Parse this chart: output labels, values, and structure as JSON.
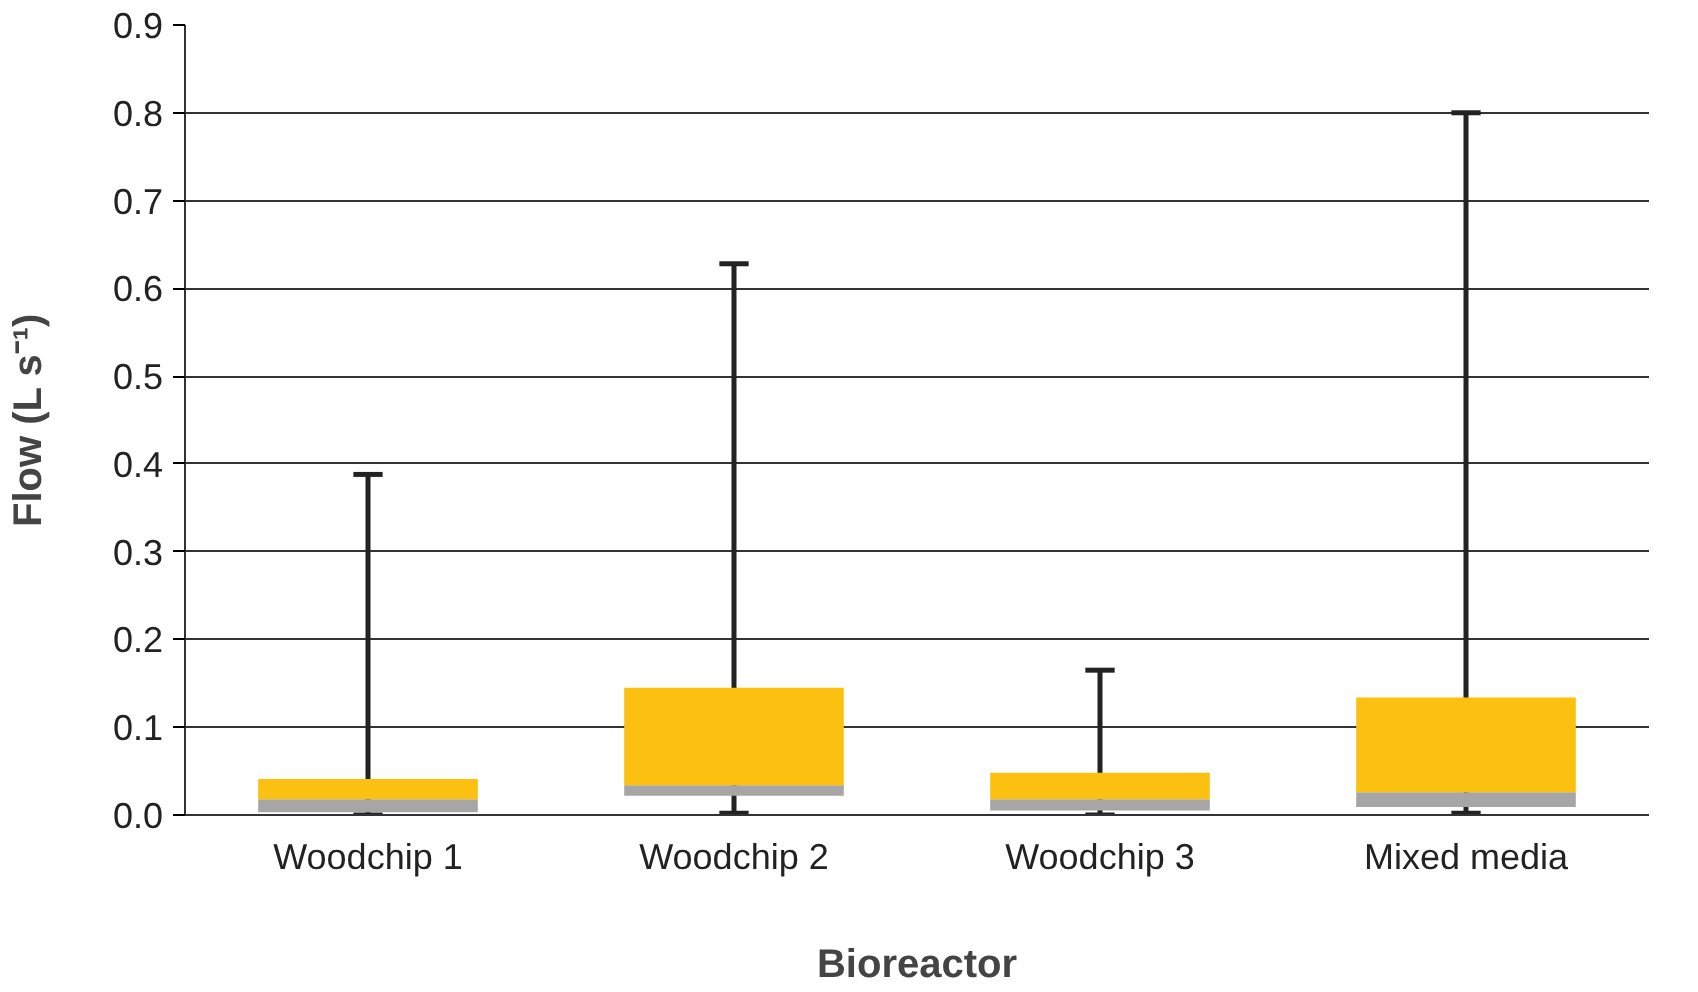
{
  "chart_data": {
    "type": "box",
    "xlabel": "Bioreactor",
    "ylabel": "Flow (L s⁻¹)",
    "categories": [
      "Woodchip 1",
      "Woodchip 2",
      "Woodchip 3",
      "Mixed media"
    ],
    "boxes": [
      {
        "low": 0.0,
        "q1": 0.003,
        "median": 0.018,
        "q3": 0.041,
        "high": 0.388
      },
      {
        "low": 0.002,
        "q1": 0.022,
        "median": 0.034,
        "q3": 0.145,
        "high": 0.628
      },
      {
        "low": 0.0,
        "q1": 0.005,
        "median": 0.018,
        "q3": 0.048,
        "high": 0.165
      },
      {
        "low": 0.002,
        "q1": 0.009,
        "median": 0.026,
        "q3": 0.134,
        "high": 0.8
      }
    ],
    "ylim": [
      0,
      0.9
    ],
    "yticks": [
      {
        "value": 0,
        "label": "0.0"
      },
      0.1,
      0.2,
      0.3,
      0.4,
      0.5,
      0.6,
      0.7,
      0.8,
      0.9
    ],
    "grid": "y"
  }
}
